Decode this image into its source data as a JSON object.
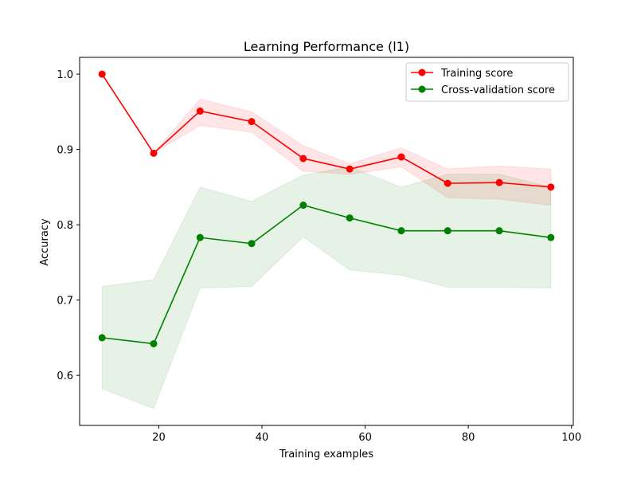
{
  "chart_data": {
    "type": "line",
    "title": "Learning Performance (l1)",
    "xlabel": "Training examples",
    "ylabel": "Accuracy",
    "xlim": [
      4.65,
      100.35
    ],
    "ylim": [
      0.5335,
      1.0223
    ],
    "xticks": [
      20,
      40,
      60,
      80,
      100
    ],
    "yticks": [
      0.6,
      0.7,
      0.8,
      0.9,
      1.0
    ],
    "xtick_labels": [
      "20",
      "40",
      "60",
      "80",
      "100"
    ],
    "ytick_labels": [
      "0.6",
      "0.7",
      "0.8",
      "0.9",
      "1.0"
    ],
    "grid": false,
    "legend_position": "upper right",
    "x": [
      9,
      19,
      28,
      38,
      48,
      57,
      67,
      76,
      86,
      96
    ],
    "series": [
      {
        "name": "Training score",
        "color": "#ff0000",
        "values": [
          1.0,
          0.895,
          0.951,
          0.937,
          0.888,
          0.874,
          0.89,
          0.855,
          0.856,
          0.85
        ],
        "band_lower": [
          1.0,
          0.895,
          0.932,
          0.923,
          0.871,
          0.867,
          0.877,
          0.836,
          0.834,
          0.826
        ],
        "band_upper": [
          1.0,
          0.895,
          0.967,
          0.95,
          0.905,
          0.881,
          0.902,
          0.874,
          0.878,
          0.874
        ],
        "band_color": "#ff0000"
      },
      {
        "name": "Cross-validation score",
        "color": "#008000",
        "values": [
          0.65,
          0.642,
          0.783,
          0.775,
          0.826,
          0.809,
          0.792,
          0.792,
          0.792,
          0.783
        ],
        "band_lower": [
          0.582,
          0.556,
          0.716,
          0.718,
          0.784,
          0.74,
          0.733,
          0.717,
          0.717,
          0.716
        ],
        "band_upper": [
          0.718,
          0.727,
          0.85,
          0.831,
          0.866,
          0.877,
          0.85,
          0.867,
          0.867,
          0.85
        ],
        "band_color": "#008000"
      }
    ]
  }
}
